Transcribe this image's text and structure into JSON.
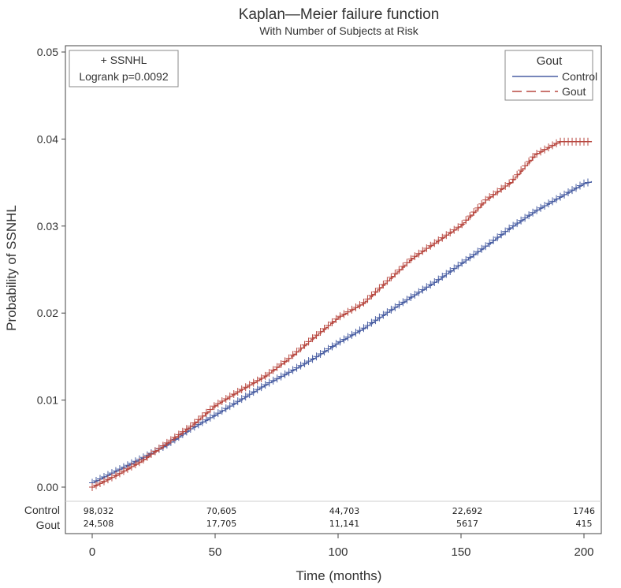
{
  "chart_data": {
    "type": "line",
    "title": "Kaplan—Meier failure function",
    "subtitle": "With Number of Subjects at Risk",
    "xlabel": "Time (months)",
    "ylabel": "Probability of SSNHL",
    "xlim": [
      0,
      200
    ],
    "ylim": [
      0,
      0.05
    ],
    "x_ticks": [
      "0",
      "50",
      "100",
      "150",
      "200"
    ],
    "y_ticks": [
      "0.00",
      "0.01",
      "0.02",
      "0.03",
      "0.04",
      "0.05"
    ],
    "annotation": {
      "censor_label": "+ SSNHL",
      "logrank": "Logrank p=0.0092"
    },
    "legend": {
      "title": "Gout",
      "position": "top-right",
      "entries": [
        "Control",
        "Gout"
      ]
    },
    "series": [
      {
        "name": "Control",
        "color": "#4a5fa3",
        "line_style": "solid",
        "x": [
          0,
          10,
          20,
          30,
          40,
          50,
          60,
          70,
          80,
          90,
          100,
          110,
          120,
          130,
          140,
          150,
          160,
          170,
          180,
          190,
          200,
          203
        ],
        "values": [
          0.0005,
          0.0019,
          0.0033,
          0.0048,
          0.0067,
          0.0083,
          0.01,
          0.0117,
          0.0132,
          0.0148,
          0.0166,
          0.0182,
          0.0201,
          0.0219,
          0.0237,
          0.0257,
          0.0277,
          0.0298,
          0.0317,
          0.0333,
          0.0349,
          0.0351
        ]
      },
      {
        "name": "Gout",
        "color": "#b84840",
        "line_style": "dashed",
        "x": [
          0,
          10,
          20,
          30,
          40,
          50,
          60,
          70,
          80,
          90,
          100,
          110,
          120,
          130,
          140,
          150,
          160,
          170,
          180,
          190,
          203
        ],
        "values": [
          0.0,
          0.0014,
          0.003,
          0.005,
          0.007,
          0.0094,
          0.0111,
          0.0127,
          0.0148,
          0.0172,
          0.0195,
          0.0211,
          0.0237,
          0.0263,
          0.0282,
          0.0301,
          0.033,
          0.035,
          0.0382,
          0.0397,
          0.0397
        ]
      }
    ],
    "risk_table": {
      "rows": [
        {
          "label": "Control",
          "values": [
            "98,032",
            "70,605",
            "44,703",
            "22,692",
            "1746"
          ]
        },
        {
          "label": "Gout",
          "values": [
            "24,508",
            "17,705",
            "11,141",
            "5617",
            "415"
          ]
        }
      ],
      "times": [
        0,
        50,
        100,
        150,
        200
      ]
    }
  }
}
